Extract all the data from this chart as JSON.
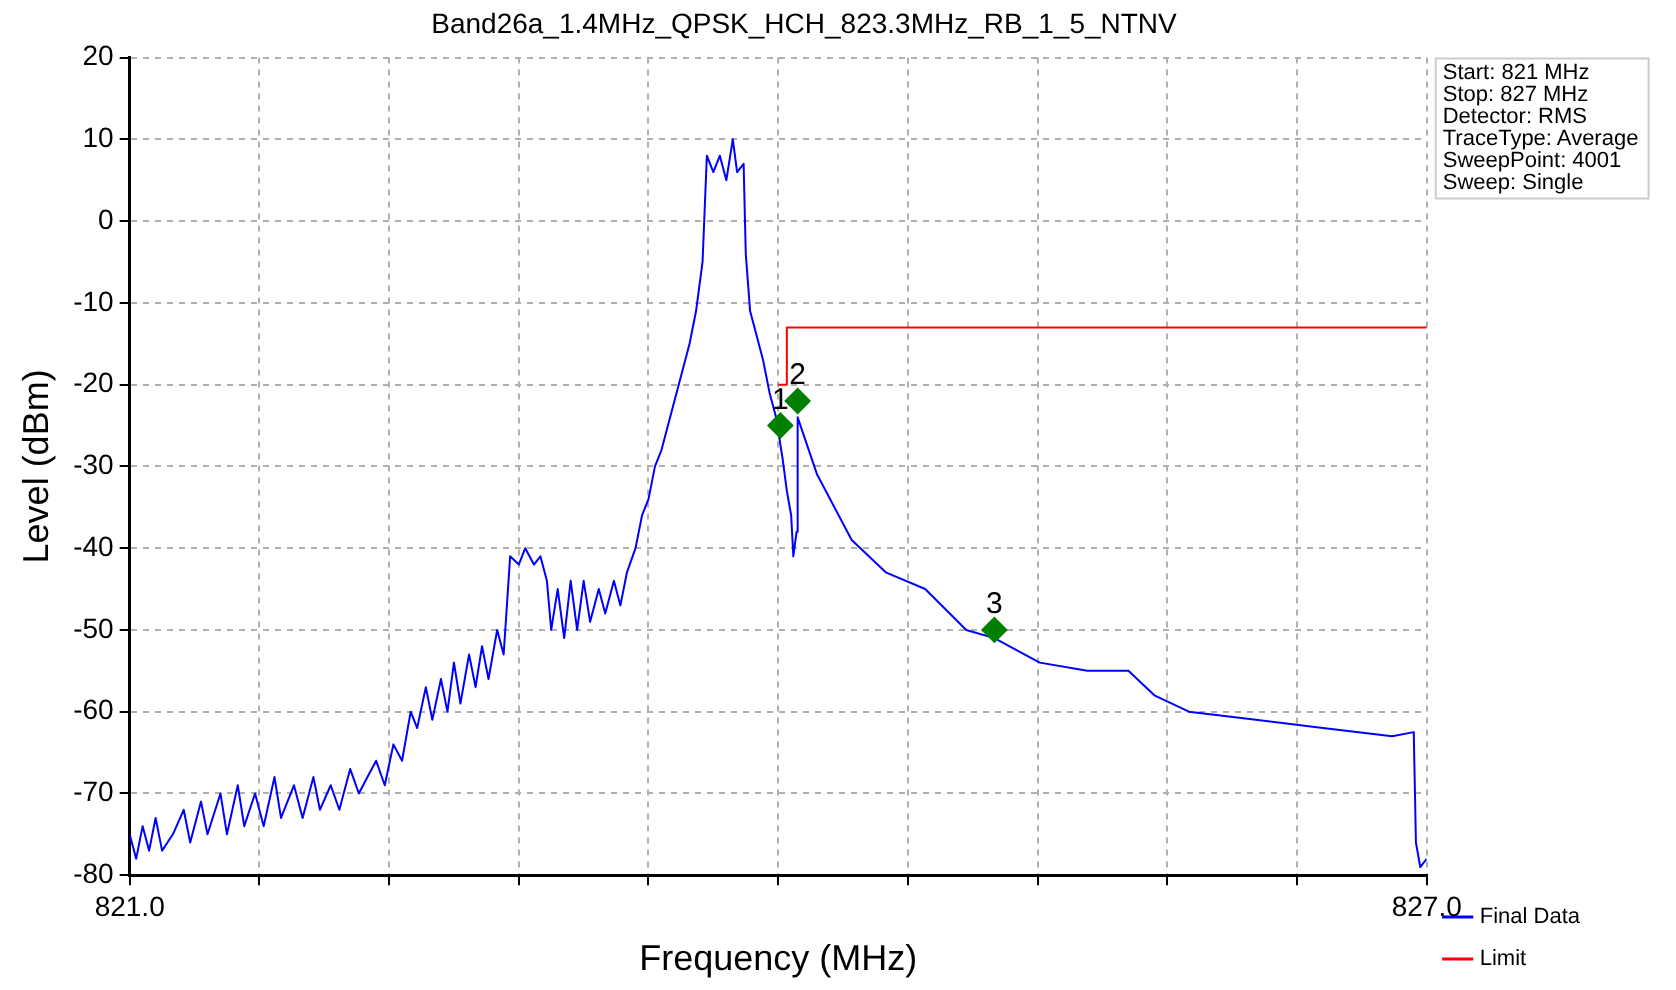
{
  "chart_data": {
    "type": "line",
    "title": "Band26a_1.4MHz_QPSK_HCH_823.3MHz_RB_1_5_NTNV",
    "xlabel": "Frequency (MHz)",
    "ylabel": "Level (dBm)",
    "xlim": [
      821,
      827
    ],
    "ylim": [
      -80,
      20
    ],
    "xticks": [
      {
        "value": 821,
        "label": "821.0"
      },
      {
        "value": 821.6,
        "label": null
      },
      {
        "value": 822.2,
        "label": null
      },
      {
        "value": 822.8,
        "label": null
      },
      {
        "value": 823.4,
        "label": null
      },
      {
        "value": 824,
        "label": null
      },
      {
        "value": 824.6,
        "label": null
      },
      {
        "value": 825.2,
        "label": null
      },
      {
        "value": 825.8,
        "label": null
      },
      {
        "value": 826.4,
        "label": null
      },
      {
        "value": 827,
        "label": "827.0"
      }
    ],
    "yticks": [
      -80,
      -70,
      -60,
      -50,
      -40,
      -30,
      -20,
      -10,
      0,
      10,
      20
    ],
    "grid": true,
    "legend": "bottom right",
    "series": [
      {
        "name": "Final Data",
        "color": "#0000ff",
        "marker": "none",
        "x": [
          821.0,
          821.03,
          821.06,
          821.09,
          821.12,
          821.15,
          821.2,
          821.25,
          821.28,
          821.33,
          821.36,
          821.42,
          821.45,
          821.5,
          821.53,
          821.58,
          821.62,
          821.67,
          821.7,
          821.76,
          821.8,
          821.85,
          821.88,
          821.93,
          821.97,
          822.02,
          822.06,
          822.1,
          822.14,
          822.18,
          822.22,
          822.26,
          822.3,
          822.33,
          822.37,
          822.4,
          822.44,
          822.47,
          822.5,
          822.53,
          822.57,
          822.6,
          822.63,
          822.66,
          822.7,
          822.73,
          822.74,
          822.76,
          822.8,
          822.83,
          822.87,
          822.9,
          822.93,
          822.95,
          822.98,
          823.01,
          823.04,
          823.07,
          823.1,
          823.13,
          823.17,
          823.2,
          823.24,
          823.27,
          823.3,
          823.34,
          823.37,
          823.4,
          823.43,
          823.46,
          823.5,
          823.53,
          823.56,
          823.59,
          823.62,
          823.65,
          823.67,
          823.7,
          823.73,
          823.76,
          823.79,
          823.81,
          823.84,
          823.85,
          823.87,
          823.9,
          823.93,
          823.96,
          823.99,
          824.02,
          824.04,
          824.06,
          824.07,
          824.085,
          824.09,
          824.18,
          824.34,
          824.5,
          824.68,
          824.87,
          825.0,
          825.21,
          825.43,
          825.62,
          825.74,
          825.9,
          826.21,
          826.52,
          826.84,
          826.94,
          826.95,
          826.97,
          827.0
        ],
        "values": [
          -75,
          -78,
          -74,
          -77,
          -73,
          -77,
          -75,
          -72,
          -76,
          -71,
          -75,
          -70,
          -75,
          -69,
          -74,
          -70,
          -74,
          -68,
          -73,
          -69,
          -73,
          -68,
          -72,
          -69,
          -72,
          -67,
          -70,
          -68,
          -66,
          -69,
          -64,
          -66,
          -60,
          -62,
          -57,
          -61,
          -56,
          -60,
          -54,
          -59,
          -53,
          -57,
          -52,
          -56,
          -50,
          -53,
          -49,
          -41,
          -42,
          -40,
          -42,
          -41,
          -44,
          -50,
          -45,
          -51,
          -44,
          -50,
          -44,
          -49,
          -45,
          -48,
          -44,
          -47,
          -43,
          -40,
          -36,
          -34,
          -30,
          -28,
          -24,
          -21,
          -18,
          -15,
          -11,
          -5,
          8,
          6,
          8,
          5,
          10,
          6,
          7,
          -4,
          -11,
          -14,
          -17,
          -21,
          -24,
          -29,
          -33,
          -36,
          -41,
          -38,
          -24,
          -31,
          -39,
          -43,
          -45,
          -50,
          -51,
          -54,
          -55,
          -55,
          -58,
          -60,
          -61,
          -62,
          -63,
          -62.5,
          -76,
          -79,
          -78
        ]
      },
      {
        "name": "Limit",
        "color": "#ff0000",
        "marker": "none",
        "x": [
          824.0,
          824.04,
          824.04,
          827.0
        ],
        "values": [
          -20,
          -20,
          -13,
          -13
        ]
      },
      {
        "type": "scatter",
        "color": "#008000",
        "marker": "diamond",
        "x": [
          824.01,
          824.09,
          825.0
        ],
        "values": [
          -25,
          -22,
          -50
        ]
      }
    ],
    "annotations": [
      {
        "text": "1",
        "x": 824.01,
        "y": -25
      },
      {
        "text": "2",
        "x": 824.09,
        "y": -22
      },
      {
        "text": "3",
        "x": 825.0,
        "y": -50
      },
      "Start: 821 MHz",
      "Stop: 827 MHz",
      "Detector: RMS",
      "TraceType: Average",
      "SweepPoint: 4001",
      "Sweep: Single"
    ]
  }
}
